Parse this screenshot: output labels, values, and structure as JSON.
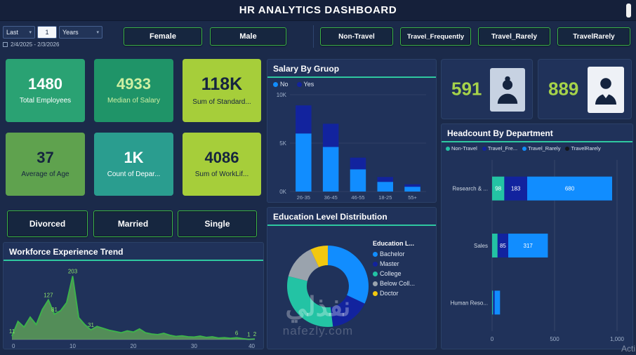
{
  "header": {
    "title": "HR ANALYTICS DASHBOARD"
  },
  "date_slicer": {
    "mode": "Last",
    "value": "1",
    "unit": "Years",
    "range": "2/4/2025 - 2/3/2026"
  },
  "gender_filters": [
    {
      "label": "Female"
    },
    {
      "label": "Male"
    }
  ],
  "travel_filters": [
    {
      "label": "Non-Travel"
    },
    {
      "label": "Travel_Frequently"
    },
    {
      "label": "Travel_Rarely"
    },
    {
      "label": "TravelRarely"
    }
  ],
  "marital_filters": [
    {
      "label": "Divorced"
    },
    {
      "label": "Married"
    },
    {
      "label": "Single"
    }
  ],
  "kpi_cards": [
    {
      "value": "1480",
      "label": "Total Employees",
      "bg": "#2aa273",
      "fg": "#ffffff"
    },
    {
      "value": "4933",
      "label": "Median of Salary",
      "bg": "#1f9468",
      "fg": "#cdefa2"
    },
    {
      "value": "118K",
      "label": "Sum of Standard...",
      "bg": "#a6ce3a",
      "fg": "#15243f"
    },
    {
      "value": "37",
      "label": "Average of Age",
      "bg": "#5fa24e",
      "fg": "#15243f"
    },
    {
      "value": "1K",
      "label": "Count of Depar...",
      "bg": "#2a9d8f",
      "fg": "#ffffff"
    },
    {
      "value": "4086",
      "label": "Sum of WorkLif...",
      "bg": "#a6ce3a",
      "fg": "#15243f"
    }
  ],
  "people_cards": [
    {
      "value": "591",
      "icon": "female-icon"
    },
    {
      "value": "889",
      "icon": "male-icon"
    }
  ],
  "watermark": {
    "arabic": "نفذلي",
    "site": "nafezly.com",
    "corner": "Acti"
  },
  "colors": {
    "accent_green": "#3cb54a",
    "teal_underline": "#2fc8a0",
    "value_green": "#a6d34a",
    "axis_text": "#9fb0c9"
  },
  "chart_data": [
    {
      "id": "salary",
      "type": "bar",
      "stacked": true,
      "title": "Salary By Gruop",
      "categories": [
        "26-35",
        "36-45",
        "46-55",
        "18-25",
        "55+"
      ],
      "series": [
        {
          "name": "No",
          "color": "#118DFF",
          "values": [
            6000,
            4600,
            2300,
            1000,
            500
          ]
        },
        {
          "name": "Yes",
          "color": "#12239E",
          "values": [
            2900,
            2400,
            1200,
            500,
            250
          ]
        }
      ],
      "ylim": [
        0,
        10000
      ],
      "yticks": [
        "0K",
        "5K",
        "10K"
      ],
      "legend_position": "top-left",
      "grid": true
    },
    {
      "id": "education",
      "type": "pie",
      "donut": true,
      "title": "Education Level Distribution",
      "legend_title": "Education L...",
      "slices": [
        {
          "name": "Bachelor",
          "color": "#118DFF",
          "value": 32
        },
        {
          "name": "Master",
          "color": "#12239E",
          "value": 16
        },
        {
          "name": "College",
          "color": "#23c3a4",
          "value": 31
        },
        {
          "name": "Below Coll...",
          "color": "#9aa3ad",
          "value": 14
        },
        {
          "name": "Doctor",
          "color": "#f2c80f",
          "value": 7
        }
      ],
      "legend_position": "right"
    },
    {
      "id": "headcount",
      "type": "bar",
      "orientation": "horizontal",
      "stacked": true,
      "title": "Headcount By Department",
      "categories": [
        "Research & ...",
        "Sales",
        "Human Reso..."
      ],
      "series": [
        {
          "name": "Non-Travel",
          "color": "#23c3a4",
          "values": [
            98,
            44,
            8
          ]
        },
        {
          "name": "Travel_Fre...",
          "color": "#12239E",
          "values": [
            183,
            85,
            12
          ]
        },
        {
          "name": "Travel_Rarely",
          "color": "#118DFF",
          "values": [
            680,
            317,
            43
          ]
        },
        {
          "name": "TravelRarely",
          "color": "#15171c",
          "values": [
            0,
            0,
            0
          ]
        }
      ],
      "xlim": [
        0,
        1000
      ],
      "xticks": [
        "0",
        "500",
        "1,000"
      ],
      "legend_position": "top",
      "data_labels": true
    },
    {
      "id": "workforce",
      "type": "area",
      "title": "Workforce Experience Trend",
      "xlim": [
        0,
        40
      ],
      "xticks": [
        "0",
        "10",
        "20",
        "30",
        "40"
      ],
      "values": [
        11,
        58,
        40,
        72,
        48,
        96,
        127,
        81,
        92,
        118,
        203,
        70,
        48,
        31,
        42,
        36,
        30,
        26,
        22,
        28,
        24,
        34,
        22,
        18,
        16,
        20,
        14,
        10,
        12,
        9,
        8,
        11,
        7,
        9,
        5,
        6,
        4,
        6,
        3,
        1,
        2
      ],
      "labeled_points": [
        {
          "x": 0,
          "y": 11
        },
        {
          "x": 6,
          "y": 127
        },
        {
          "x": 7,
          "y": 81
        },
        {
          "x": 10,
          "y": 203
        },
        {
          "x": 13,
          "y": 31
        },
        {
          "x": 37,
          "y": 6
        },
        {
          "x": 39,
          "y": 1
        },
        {
          "x": 40,
          "y": 2
        }
      ],
      "line_color": "#3cb54a",
      "fill_color": "rgba(126,217,87,0.55)"
    }
  ]
}
